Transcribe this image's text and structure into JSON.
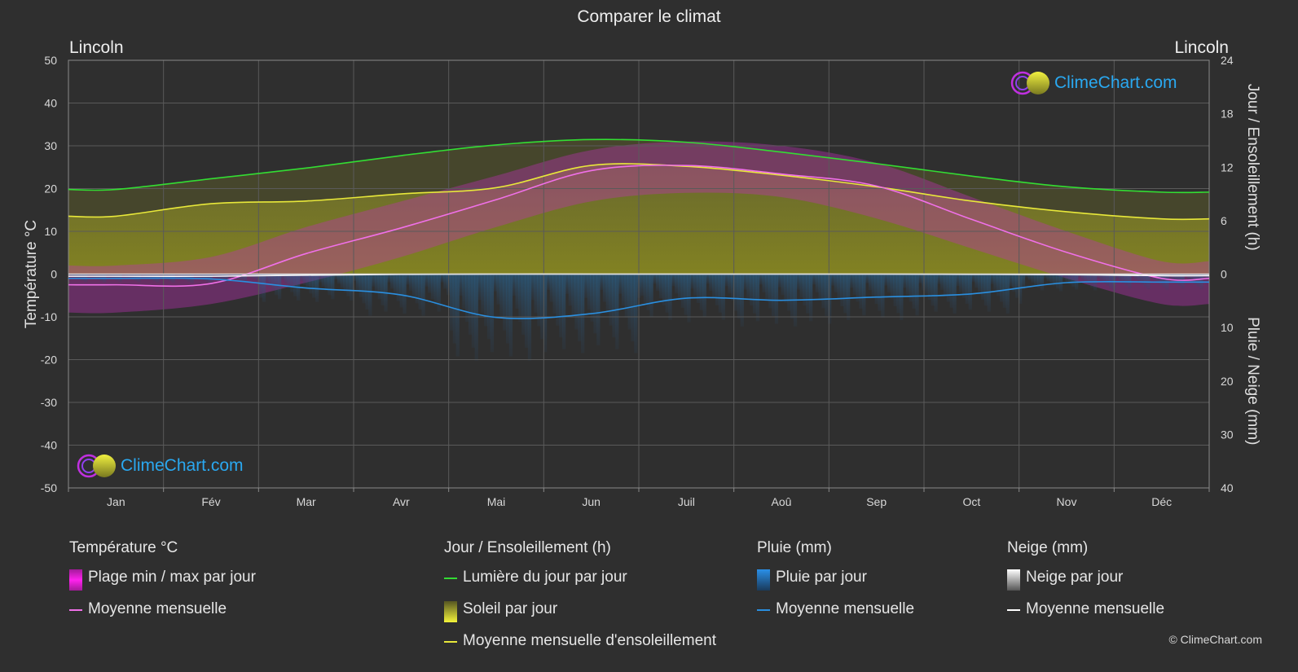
{
  "title": "Comparer le climat",
  "city_left": "Lincoln",
  "city_right": "Lincoln",
  "brand": "ClimeChart.com",
  "copyright": "© ClimeChart.com",
  "colors": {
    "daylight": "#33dd33",
    "sunshine_mean": "#e8e83a",
    "temp_mean": "#f070e8",
    "rain_mean": "#2a8fe0",
    "snow_mean": "#ffffff",
    "temp_range": "#d020c8",
    "sun_fill": "#8a8a2a",
    "rain_fill": "#2a6aa0"
  },
  "legend": {
    "temperature": {
      "head": "Température °C",
      "range": "Plage min / max par jour",
      "mean": "Moyenne mensuelle"
    },
    "sun": {
      "head": "Jour / Ensoleillement (h)",
      "daylight": "Lumière du jour par jour",
      "sunshine": "Soleil par jour",
      "mean": "Moyenne mensuelle d'ensoleillement"
    },
    "rain": {
      "head": "Pluie (mm)",
      "daily": "Pluie par jour",
      "mean": "Moyenne mensuelle"
    },
    "snow": {
      "head": "Neige (mm)",
      "daily": "Neige par jour",
      "mean": "Moyenne mensuelle"
    }
  },
  "chart_data": {
    "type": "line",
    "title": "Comparer le climat",
    "months": [
      "Jan",
      "Fév",
      "Mar",
      "Avr",
      "Mai",
      "Jun",
      "Juil",
      "Aoû",
      "Sep",
      "Oct",
      "Nov",
      "Déc"
    ],
    "y_left": {
      "label": "Température °C",
      "range": [
        -50,
        50
      ],
      "ticks": [
        50,
        40,
        30,
        20,
        10,
        0,
        -10,
        -20,
        -30,
        -40,
        -50
      ]
    },
    "y_right_top": {
      "label": "Jour / Ensoleillement (h)",
      "range": [
        0,
        24
      ],
      "ticks": [
        24,
        18,
        12,
        6,
        0
      ]
    },
    "y_right_bottom": {
      "label": "Pluie / Neige (mm)",
      "range": [
        0,
        40
      ],
      "ticks": [
        0,
        10,
        20,
        30,
        40
      ]
    },
    "grid": true,
    "series": [
      {
        "name": "Lumière du jour par jour",
        "axis": "hours",
        "values": [
          9.5,
          10.7,
          11.9,
          13.3,
          14.5,
          15.1,
          14.8,
          13.7,
          12.4,
          11.0,
          9.8,
          9.2
        ]
      },
      {
        "name": "Moyenne mensuelle d'ensoleillement",
        "axis": "hours",
        "values": [
          6.5,
          7.9,
          8.2,
          9.0,
          9.7,
          12.2,
          12.1,
          11.1,
          9.8,
          8.2,
          7.0,
          6.2
        ]
      },
      {
        "name": "Moyenne mensuelle",
        "kind": "temperature",
        "axis": "temperature",
        "values": [
          -2.5,
          -2.2,
          4.8,
          10.8,
          17.4,
          24.2,
          25.4,
          23.4,
          20.6,
          12.8,
          5.1,
          -1.0
        ]
      },
      {
        "name": "Moyenne mensuelle",
        "kind": "rain",
        "axis": "mm",
        "values": [
          0.8,
          0.9,
          2.6,
          3.9,
          8.1,
          7.4,
          4.5,
          4.9,
          4.3,
          3.7,
          1.6,
          1.5
        ]
      },
      {
        "name": "Moyenne mensuelle",
        "kind": "snow",
        "axis": "mm",
        "values": [
          0.4,
          0.4,
          0.2,
          0.05,
          0,
          0,
          0,
          0,
          0,
          0.05,
          0.1,
          0.3
        ]
      }
    ],
    "temperature_range_monthly": {
      "min": [
        -9,
        -7,
        -2,
        4,
        11,
        17,
        19,
        18,
        13,
        6,
        -1,
        -7
      ],
      "max": [
        2,
        4,
        11,
        17,
        23,
        29,
        31,
        30,
        26,
        18,
        10,
        3
      ]
    }
  }
}
